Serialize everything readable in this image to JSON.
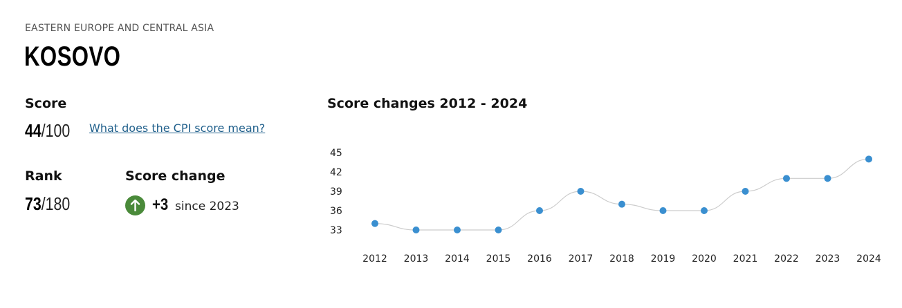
{
  "header": {
    "region": "EASTERN EUROPE AND CENTRAL ASIA",
    "country": "KOSOVO"
  },
  "score": {
    "label": "Score",
    "value": "44",
    "max": "/100",
    "link_text": "What does the CPI score mean?"
  },
  "rank": {
    "label": "Rank",
    "value": "73",
    "max": "/180"
  },
  "score_change": {
    "label": "Score change",
    "icon": "arrow-up-icon",
    "color": "#4a8a3a",
    "value": "+3",
    "since": "since 2023"
  },
  "chart_data": {
    "type": "line",
    "title": "Score changes 2012 - 2024",
    "categories": [
      "2012",
      "2013",
      "2014",
      "2015",
      "2016",
      "2017",
      "2018",
      "2019",
      "2020",
      "2021",
      "2022",
      "2023",
      "2024"
    ],
    "values": [
      34,
      33,
      33,
      33,
      36,
      39,
      37,
      36,
      36,
      39,
      41,
      41,
      44
    ],
    "yticks": [
      "45",
      "42",
      "39",
      "36",
      "33"
    ],
    "ylim": [
      33,
      45
    ],
    "point_color": "#3a8fd0",
    "line_color": "#cccccc",
    "grid": false
  }
}
